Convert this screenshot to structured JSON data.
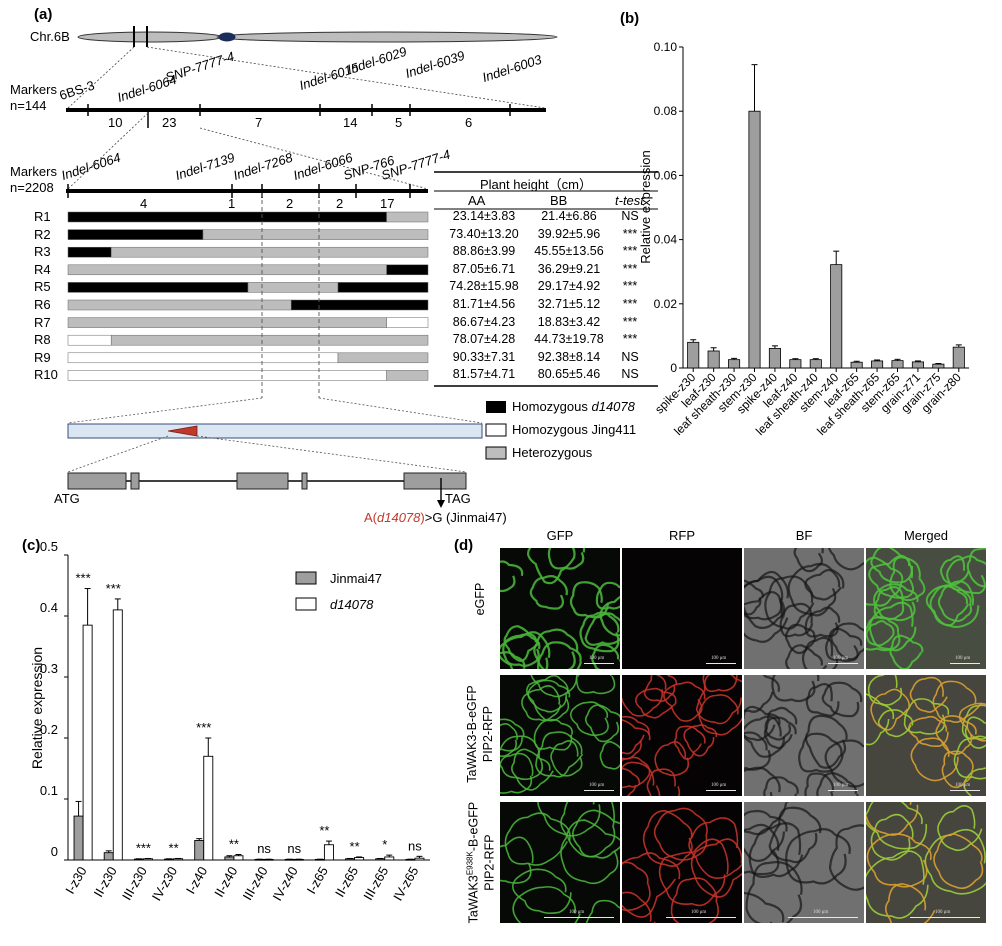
{
  "panel_a": {
    "label": "(a)",
    "chromosome": "Chr.6B",
    "markers_row1": {
      "title_line1": "Markers",
      "title_line2": "n=144",
      "markers": [
        "6BS-3",
        "Indel-6064",
        "SNP-7777-4",
        "Indel-6015",
        "Indel-6029",
        "Indel-6039",
        "Indel-6003"
      ],
      "intervals": [
        "10",
        "23",
        "7",
        "14",
        "5",
        "6"
      ]
    },
    "markers_row2": {
      "title_line1": "Markers",
      "title_line2": "n=2208",
      "markers": [
        "Indel-6064",
        "Indel-7139",
        "Indel-7268",
        "Indel-6066",
        "SNP-766",
        "SNP-7777-4"
      ],
      "intervals": [
        "4",
        "1",
        "2",
        "2",
        "17"
      ]
    },
    "table": {
      "title": "Plant height（cm）",
      "col_aa": "AA",
      "col_bb": "BB",
      "col_test": "t-test",
      "rows": [
        {
          "id": "R1",
          "aa": "23.14±3.83",
          "bb": "21.4±6.86",
          "sig": "NS",
          "segs": [
            [
              0,
              0.885,
              "b"
            ],
            [
              0.885,
              1,
              "g"
            ]
          ]
        },
        {
          "id": "R2",
          "aa": "73.40±13.20",
          "bb": "39.92±5.96",
          "sig": "***",
          "segs": [
            [
              0,
              0.375,
              "b"
            ],
            [
              0.375,
              1,
              "g"
            ]
          ]
        },
        {
          "id": "R3",
          "aa": "88.86±3.99",
          "bb": "45.55±13.56",
          "sig": "***",
          "segs": [
            [
              0,
              0.12,
              "b"
            ],
            [
              0.12,
              1,
              "g"
            ]
          ]
        },
        {
          "id": "R4",
          "aa": "87.05±6.71",
          "bb": "36.29±9.21",
          "sig": "***",
          "segs": [
            [
              0,
              0.885,
              "g"
            ],
            [
              0.885,
              1,
              "b"
            ]
          ]
        },
        {
          "id": "R5",
          "aa": "74.28±15.98",
          "bb": "29.17±4.92",
          "sig": "***",
          "segs": [
            [
              0,
              0.5,
              "b"
            ],
            [
              0.5,
              0.75,
              "g"
            ],
            [
              0.75,
              1,
              "b"
            ]
          ]
        },
        {
          "id": "R6",
          "aa": "81.71±4.56",
          "bb": "32.71±5.12",
          "sig": "***",
          "segs": [
            [
              0,
              0.62,
              "g"
            ],
            [
              0.62,
              1,
              "b"
            ]
          ]
        },
        {
          "id": "R7",
          "aa": "86.67±4.23",
          "bb": "18.83±3.42",
          "sig": "***",
          "segs": [
            [
              0,
              0.885,
              "g"
            ],
            [
              0.885,
              1,
              "w"
            ]
          ]
        },
        {
          "id": "R8",
          "aa": "78.07±4.28",
          "bb": "44.73±19.78",
          "sig": "***",
          "segs": [
            [
              0,
              0.12,
              "w"
            ],
            [
              0.12,
              1,
              "g"
            ]
          ]
        },
        {
          "id": "R9",
          "aa": "90.33±7.31",
          "bb": "92.38±8.14",
          "sig": "NS",
          "segs": [
            [
              0,
              0.75,
              "w"
            ],
            [
              0.75,
              1,
              "g"
            ]
          ]
        },
        {
          "id": "R10",
          "aa": "81.57±4.71",
          "bb": "80.65±5.46",
          "sig": "NS",
          "segs": [
            [
              0,
              0.885,
              "w"
            ],
            [
              0.885,
              1,
              "g"
            ]
          ]
        }
      ]
    },
    "legend": [
      "Homozygous d14078",
      "Homozygous Jing411",
      "Heterozygous"
    ],
    "legend_italic_part": "d14078",
    "gene": {
      "start": "ATG",
      "end": "TAG",
      "mutation_prefix": "A(",
      "mutation_allele": "d14078",
      "mutation_suffix": ")",
      "mutation_to": ">G (Jinmai47)"
    },
    "colors": {
      "black": "#000000",
      "grey": "#bdbdbd",
      "white": "#ffffff",
      "mutation": "#c0392b"
    }
  },
  "panel_b": {
    "label": "(b)",
    "chart_data": {
      "type": "bar",
      "ylabel": "Relative expression",
      "ylim": [
        0,
        0.1
      ],
      "yticks": [
        "0",
        "0.02",
        "0.04",
        "0.06",
        "0.08",
        "0.10"
      ],
      "categories": [
        "spike-z30",
        "leaf-z30",
        "leaf sheath-z30",
        "stem-z30",
        "spike-z40",
        "leaf-z40",
        "leaf sheath-z40",
        "stem-z40",
        "leaf-z65",
        "leaf sheath-z65",
        "stem-z65",
        "grain-z71",
        "grain-z75",
        "grain-z80"
      ],
      "values": [
        0.008,
        0.0053,
        0.0026,
        0.08,
        0.0061,
        0.0026,
        0.0026,
        0.0322,
        0.0018,
        0.0022,
        0.0023,
        0.0019,
        0.0012,
        0.0065
      ],
      "errors": [
        0.0008,
        0.001,
        0.0004,
        0.0145,
        0.0008,
        0.0003,
        0.0003,
        0.0042,
        0.0003,
        0.0003,
        0.0004,
        0.0003,
        0.0002,
        0.0007
      ],
      "bar_color": "#9e9e9e"
    }
  },
  "panel_c": {
    "label": "(c)",
    "chart_data": {
      "type": "bar",
      "ylabel": "Relative expression",
      "ylim": [
        0,
        0.5
      ],
      "yticks": [
        "0",
        "0.1",
        "0.2",
        "0.3",
        "0.4",
        "0.5"
      ],
      "categories": [
        "I-z30",
        "II-z30",
        "III-z30",
        "IV-z30",
        "I-z40",
        "II-z40",
        "III-z40",
        "IV-z40",
        "I-z65",
        "II-z65",
        "III-z65",
        "IV-z65"
      ],
      "series": [
        {
          "name": "Jinmai47",
          "values": [
            0.072,
            0.012,
            0.0015,
            0.0015,
            0.032,
            0.005,
            0.001,
            0.001,
            0.001,
            0.002,
            0.002,
            0.001
          ],
          "errors": [
            0.024,
            0.003,
            0.0005,
            0.0005,
            0.003,
            0.002,
            0.0003,
            0.0003,
            0.0003,
            0.0005,
            0.0005,
            0.0003
          ],
          "color": "#9e9e9e"
        },
        {
          "name": "d14078",
          "values": [
            0.385,
            0.41,
            0.002,
            0.002,
            0.17,
            0.007,
            0.001,
            0.001,
            0.025,
            0.004,
            0.005,
            0.003
          ],
          "errors": [
            0.06,
            0.018,
            0.0005,
            0.0005,
            0.03,
            0.002,
            0.0003,
            0.0003,
            0.006,
            0.001,
            0.003,
            0.003
          ],
          "color": "#ffffff"
        }
      ],
      "significance": [
        "***",
        "***",
        "***",
        "**",
        "***",
        "**",
        "ns",
        "ns",
        "**",
        "**",
        "*",
        "ns"
      ],
      "legend_position": "top-right"
    }
  },
  "panel_d": {
    "label": "(d)",
    "columns": [
      "GFP",
      "RFP",
      "BF",
      "Merged"
    ],
    "rows": [
      {
        "label_lines": [
          "eGFP"
        ]
      },
      {
        "label_lines": [
          "TaWAK3-B-eGFP",
          "PIP2-RFP"
        ]
      },
      {
        "label_lines": [
          "TaWAK3E938K-B-eGFP",
          "PIP2-RFP"
        ]
      }
    ],
    "row3_parts": {
      "pre": "TaWAK3",
      "sup": "E938K",
      "post": "-B-eGFP"
    },
    "scale_bar_text": "100 μm"
  }
}
